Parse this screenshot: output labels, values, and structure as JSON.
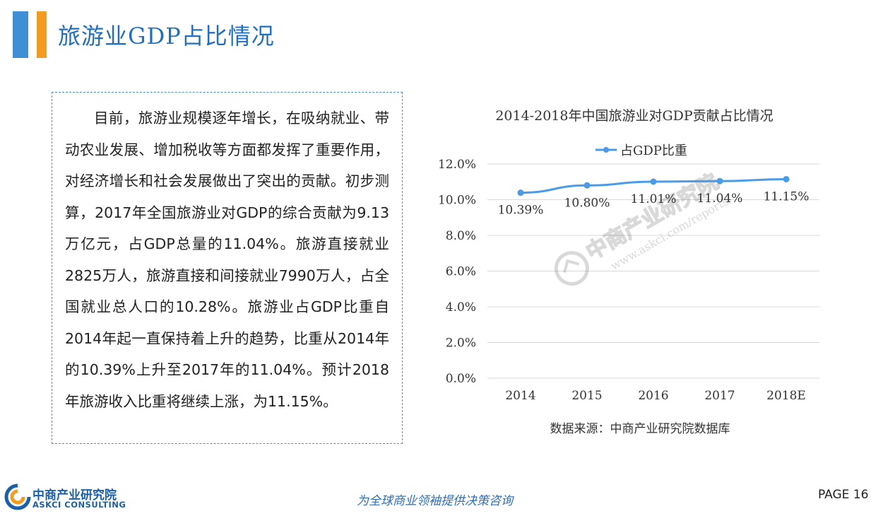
{
  "header": {
    "title": "旅游业GDP占比情况"
  },
  "body_text": "目前，旅游业规模逐年增长，在吸纳就业、带动农业发展、增加税收等方面都发挥了重要作用，对经济增长和社会发展做出了突出的贡献。初步测算，2017年全国旅游业对GDP的综合贡献为9.13万亿元，占GDP总量的11.04%。旅游直接就业2825万人，旅游直接和间接就业7990万人，占全国就业总人口的10.28%。旅游业占GDP比重自2014年起一直保持着上升的趋势，比重从2014年的10.39%上升至2017年的11.04%。预计2018年旅游收入比重将继续上涨，为11.15%。",
  "chart_data": {
    "type": "line",
    "title": "2014-2018年中国旅游业对GDP贡献占比情况",
    "categories": [
      "2014",
      "2015",
      "2016",
      "2017",
      "2018E"
    ],
    "series": [
      {
        "name": "占GDP比重",
        "values": [
          10.39,
          10.8,
          11.01,
          11.04,
          11.15
        ],
        "color": "#4a9be8"
      }
    ],
    "data_labels": [
      "10.39%",
      "10.80%",
      "11.01%",
      "11.04%",
      "11.15%"
    ],
    "ylim": [
      0,
      12
    ],
    "yticks": [
      "0.0%",
      "2.0%",
      "4.0%",
      "6.0%",
      "8.0%",
      "10.0%",
      "12.0%"
    ],
    "legend_position": "top-center",
    "grid": true
  },
  "source_note": "数据来源：中商产业研究院数据库",
  "watermark": {
    "brand": "中商产业研究院",
    "url": "www.askci.com/reports/"
  },
  "footer": {
    "logo_cn": "中商产业研究院",
    "logo_en": "ASKCI CONSULTING",
    "slogan": "为全球商业领袖提供决策咨询",
    "page": "PAGE 16"
  },
  "colors": {
    "accent_blue": "#3f8fd6",
    "accent_orange": "#f39a1f",
    "title_blue": "#1f6fc2"
  }
}
